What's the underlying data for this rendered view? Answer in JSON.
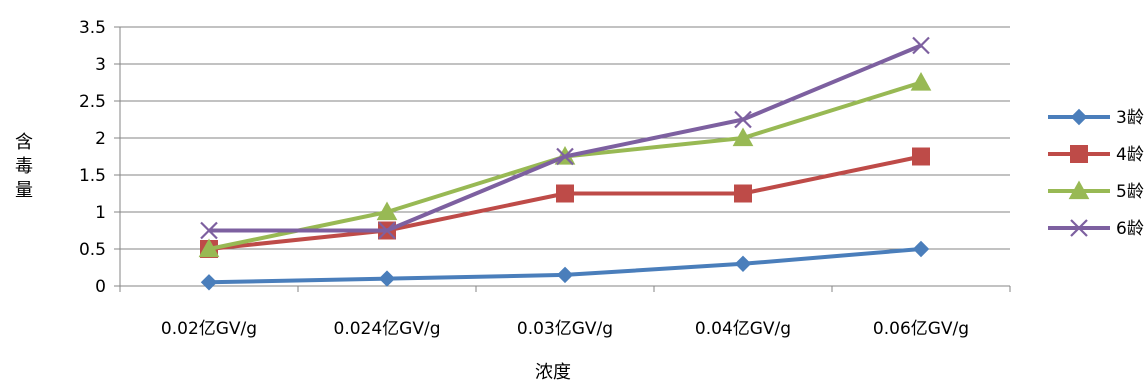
{
  "chart_data": {
    "type": "line",
    "categories": [
      "0.02亿GV/g",
      "0.024亿GV/g",
      "0.03亿GV/g",
      "0.04亿GV/g",
      "0.06亿GV/g"
    ],
    "series": [
      {
        "name": "3龄",
        "values": [
          0.05,
          0.1,
          0.15,
          0.3,
          0.5
        ],
        "color": "#4a7ebb",
        "marker": "diamond"
      },
      {
        "name": "4龄",
        "values": [
          0.5,
          0.75,
          1.25,
          1.25,
          1.75
        ],
        "color": "#be4b48",
        "marker": "square"
      },
      {
        "name": "5龄",
        "values": [
          0.5,
          1.0,
          1.75,
          2.0,
          2.75
        ],
        "color": "#98b954",
        "marker": "triangle"
      },
      {
        "name": "6龄",
        "values": [
          0.75,
          0.75,
          1.75,
          2.25,
          3.25
        ],
        "color": "#7d60a0",
        "marker": "x"
      }
    ],
    "xlabel": "浓度",
    "ylabel": "含毒量",
    "ylim": [
      0,
      3.5
    ],
    "yticks": [
      "0",
      "0.5",
      "1",
      "1.5",
      "2",
      "2.5",
      "3",
      "3.5"
    ],
    "grid": true,
    "legend_position": "right"
  }
}
